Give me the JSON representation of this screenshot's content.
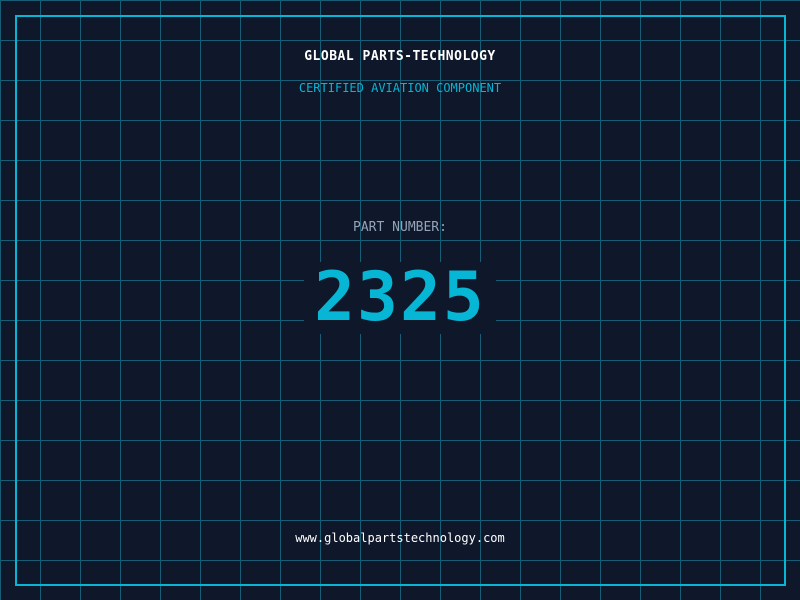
{
  "header": {
    "title": "GLOBAL PARTS-TECHNOLOGY",
    "subtitle": "CERTIFIED AVIATION COMPONENT"
  },
  "part": {
    "label": "PART NUMBER:",
    "number": "2325"
  },
  "footer": {
    "url": "www.globalpartstechnology.com"
  },
  "colors": {
    "background": "#0f172a",
    "accent": "#06b6d4",
    "grid": "#155e75"
  }
}
